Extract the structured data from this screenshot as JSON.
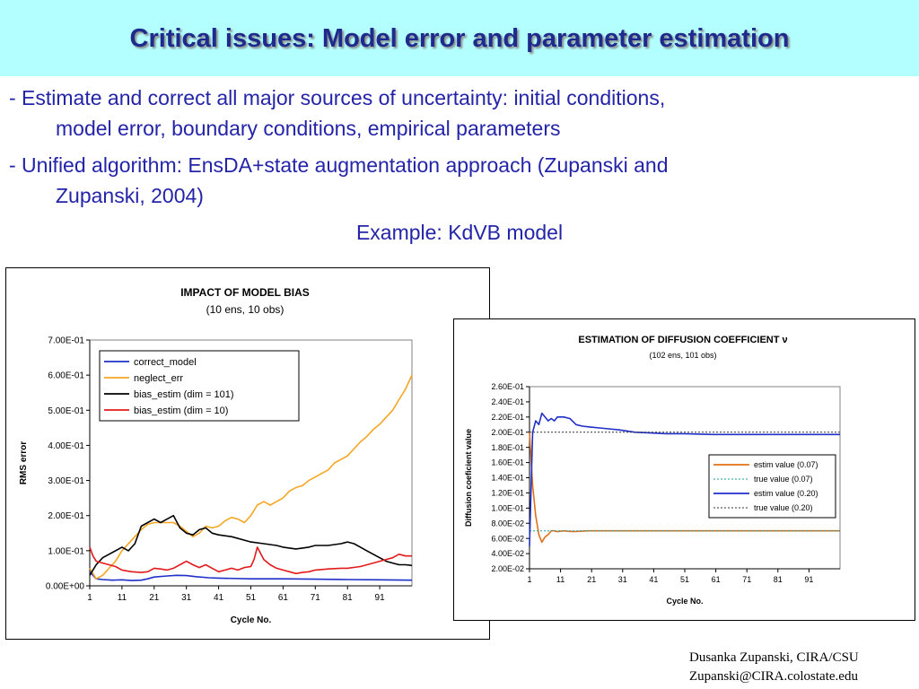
{
  "slide": {
    "title": "Critical issues: Model error and parameter estimation",
    "bullet1_line1": "- Estimate and correct all major sources of uncertainty: initial conditions,",
    "bullet1_line2": "model error, boundary conditions, empirical parameters",
    "bullet2_line1": "- Unified algorithm: EnsDA+state augmentation approach (Zupanski and",
    "bullet2_line2": "Zupanski, 2004)",
    "example": "Example: KdVB model",
    "footer_line1": "Dusanka Zupanski,  CIRA/CSU",
    "footer_line2": "Zupanski@CIRA.colostate.edu"
  },
  "chart_data": [
    {
      "type": "line",
      "title": "IMPACT OF MODEL BIAS",
      "subtitle": "(10 ens, 10 obs)",
      "xlabel": "Cycle No.",
      "ylabel": "RMS error",
      "xlim": [
        1,
        101
      ],
      "ylim": [
        0,
        0.7
      ],
      "xticks": [
        1,
        11,
        21,
        31,
        41,
        51,
        61,
        71,
        81,
        91
      ],
      "yticks": [
        0,
        0.1,
        0.2,
        0.3,
        0.4,
        0.5,
        0.6,
        0.7
      ],
      "ytick_labels": [
        "0.00E+00",
        "1.00E-01",
        "2.00E-01",
        "3.00E-01",
        "4.00E-01",
        "5.00E-01",
        "6.00E-01",
        "7.00E-01"
      ],
      "legend_position": "top-left",
      "grid": false,
      "series": [
        {
          "name": "correct_model",
          "color": "#1f2fc8",
          "dash": "",
          "x": [
            1,
            3,
            5,
            8,
            11,
            14,
            17,
            19,
            21,
            25,
            28,
            31,
            34,
            38,
            41,
            51,
            61,
            71,
            81,
            91,
            101
          ],
          "y": [
            0.04,
            0.02,
            0.018,
            0.016,
            0.017,
            0.015,
            0.016,
            0.02,
            0.025,
            0.028,
            0.03,
            0.029,
            0.026,
            0.023,
            0.022,
            0.02,
            0.02,
            0.019,
            0.018,
            0.017,
            0.016
          ]
        },
        {
          "name": "neglect_err",
          "color": "#f5a623",
          "dash": "",
          "x": [
            1,
            3,
            5,
            7,
            9,
            11,
            14,
            17,
            19,
            21,
            24,
            27,
            29,
            31,
            33,
            35,
            37,
            39,
            41,
            43,
            45,
            47,
            49,
            51,
            53,
            55,
            57,
            59,
            61,
            63,
            65,
            67,
            69,
            71,
            73,
            75,
            77,
            79,
            81,
            83,
            85,
            87,
            89,
            91,
            93,
            95,
            97,
            99,
            101
          ],
          "y": [
            0.05,
            0.02,
            0.03,
            0.05,
            0.07,
            0.1,
            0.13,
            0.16,
            0.175,
            0.18,
            0.18,
            0.18,
            0.17,
            0.155,
            0.14,
            0.15,
            0.17,
            0.165,
            0.17,
            0.185,
            0.195,
            0.19,
            0.18,
            0.2,
            0.23,
            0.24,
            0.23,
            0.24,
            0.25,
            0.27,
            0.28,
            0.285,
            0.3,
            0.31,
            0.32,
            0.33,
            0.35,
            0.36,
            0.37,
            0.39,
            0.41,
            0.425,
            0.445,
            0.46,
            0.48,
            0.5,
            0.53,
            0.56,
            0.6
          ]
        },
        {
          "name": "bias_estim (dim = 101)",
          "color": "#000000",
          "dash": "",
          "x": [
            1,
            3,
            5,
            7,
            9,
            11,
            13,
            15,
            17,
            19,
            21,
            23,
            25,
            27,
            29,
            31,
            33,
            35,
            37,
            39,
            41,
            45,
            49,
            51,
            55,
            59,
            61,
            65,
            69,
            71,
            75,
            79,
            81,
            83,
            85,
            87,
            89,
            91,
            93,
            95,
            97,
            99,
            101
          ],
          "y": [
            0.03,
            0.06,
            0.08,
            0.09,
            0.1,
            0.11,
            0.1,
            0.12,
            0.17,
            0.18,
            0.19,
            0.18,
            0.19,
            0.2,
            0.165,
            0.15,
            0.145,
            0.16,
            0.165,
            0.15,
            0.145,
            0.14,
            0.13,
            0.125,
            0.12,
            0.115,
            0.11,
            0.105,
            0.11,
            0.115,
            0.115,
            0.12,
            0.125,
            0.12,
            0.11,
            0.1,
            0.09,
            0.08,
            0.07,
            0.065,
            0.06,
            0.06,
            0.058
          ]
        },
        {
          "name": "bias_estim (dim = 10)",
          "color": "#e31a1c",
          "dash": "",
          "x": [
            1,
            2,
            3,
            5,
            7,
            9,
            11,
            14,
            17,
            19,
            21,
            23,
            25,
            27,
            29,
            31,
            33,
            35,
            37,
            39,
            41,
            43,
            45,
            47,
            49,
            51,
            52,
            53,
            55,
            57,
            59,
            61,
            63,
            65,
            67,
            69,
            71,
            75,
            79,
            81,
            85,
            89,
            91,
            95,
            97,
            99,
            101
          ],
          "y": [
            0.11,
            0.085,
            0.07,
            0.065,
            0.06,
            0.055,
            0.045,
            0.04,
            0.038,
            0.04,
            0.05,
            0.048,
            0.045,
            0.05,
            0.06,
            0.07,
            0.06,
            0.052,
            0.06,
            0.05,
            0.04,
            0.045,
            0.05,
            0.045,
            0.052,
            0.055,
            0.075,
            0.11,
            0.075,
            0.06,
            0.05,
            0.045,
            0.04,
            0.035,
            0.038,
            0.04,
            0.045,
            0.048,
            0.05,
            0.05,
            0.055,
            0.065,
            0.07,
            0.08,
            0.09,
            0.085,
            0.085
          ]
        }
      ]
    },
    {
      "type": "line",
      "title": "ESTIMATION OF DIFFUSION COEFFICIENT ν",
      "subtitle": "(102 ens, 101 obs)",
      "xlabel": "Cycle No.",
      "ylabel": "Diffusion coeficient value",
      "xlim": [
        1,
        101
      ],
      "ylim": [
        0.02,
        0.26
      ],
      "xticks": [
        1,
        11,
        21,
        31,
        41,
        51,
        61,
        71,
        81,
        91
      ],
      "yticks": [
        0.02,
        0.04,
        0.06,
        0.08,
        0.1,
        0.12,
        0.14,
        0.16,
        0.18,
        0.2,
        0.22,
        0.24,
        0.26
      ],
      "ytick_labels": [
        "2.00E-02",
        "4.00E-02",
        "6.00E-02",
        "8.00E-02",
        "1.00E-01",
        "1.20E-01",
        "1.40E-01",
        "1.60E-01",
        "1.80E-01",
        "2.00E-01",
        "2.20E-01",
        "2.40E-01",
        "2.60E-01"
      ],
      "legend_position": "right",
      "grid": false,
      "series": [
        {
          "name": "estim value (0.07)",
          "color": "#e0701a",
          "dash": "",
          "x": [
            1,
            2,
            3,
            4,
            5,
            6,
            7,
            8,
            9,
            10,
            12,
            15,
            20,
            30,
            101
          ],
          "y": [
            0.2,
            0.13,
            0.09,
            0.065,
            0.055,
            0.062,
            0.065,
            0.07,
            0.07,
            0.069,
            0.07,
            0.069,
            0.07,
            0.07,
            0.07
          ]
        },
        {
          "name": "true value (0.07)",
          "color": "#1a9e9e",
          "dash": "2,2",
          "x": [
            1,
            101
          ],
          "y": [
            0.07,
            0.07
          ]
        },
        {
          "name": "estim value (0.20)",
          "color": "#1f2fc8",
          "dash": "",
          "x": [
            1,
            2,
            3,
            4,
            5,
            6,
            7,
            8,
            9,
            10,
            12,
            14,
            16,
            18,
            20,
            25,
            30,
            35,
            40,
            45,
            50,
            60,
            70,
            80,
            90,
            101
          ],
          "y": [
            0.05,
            0.2,
            0.215,
            0.21,
            0.225,
            0.22,
            0.215,
            0.218,
            0.215,
            0.22,
            0.22,
            0.218,
            0.21,
            0.208,
            0.207,
            0.205,
            0.203,
            0.2,
            0.199,
            0.198,
            0.198,
            0.197,
            0.197,
            0.197,
            0.197,
            0.197
          ]
        },
        {
          "name": "true value (0.20)",
          "color": "#333333",
          "dash": "2,2",
          "x": [
            1,
            101
          ],
          "y": [
            0.2,
            0.2
          ]
        }
      ]
    }
  ]
}
